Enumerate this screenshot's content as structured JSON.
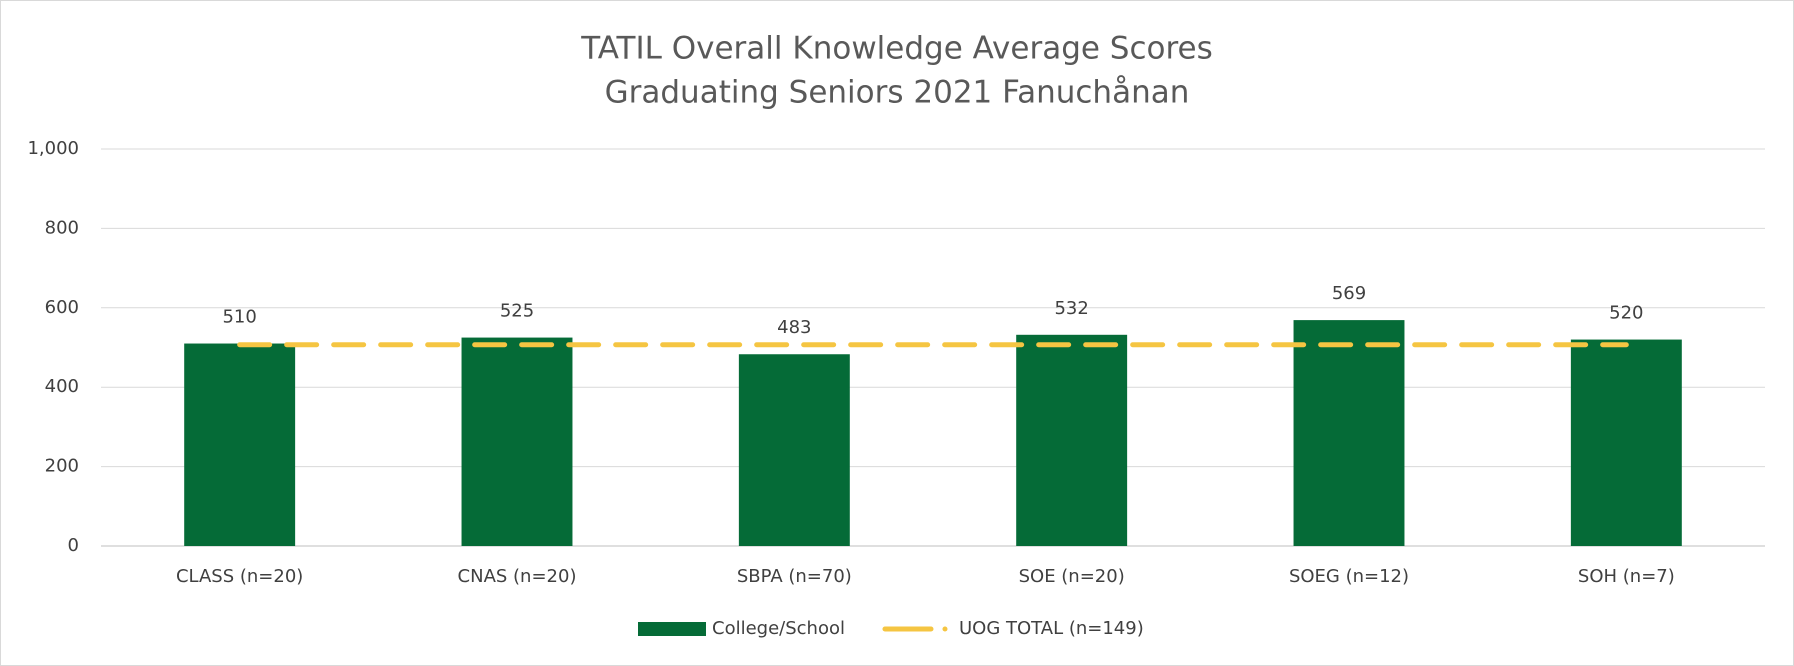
{
  "chart_data": {
    "type": "bar",
    "title": "TATIL Overall Knowledge Average Scores",
    "subtitle": "Graduating Seniors 2021 Fanuchånan",
    "categories": [
      "CLASS (n=20)",
      "CNAS (n=20)",
      "SBPA (n=70)",
      "SOE (n=20)",
      "SOEG (n=12)",
      "SOH (n=7)"
    ],
    "series": [
      {
        "name": "College/School",
        "type": "bar",
        "color": "#056b37",
        "values": [
          510,
          525,
          483,
          532,
          569,
          520
        ]
      },
      {
        "name": "UOG TOTAL (n=149)",
        "type": "line",
        "color": "#f5c542",
        "values": [
          507,
          507,
          507,
          507,
          507,
          507
        ]
      }
    ],
    "ylim": [
      0,
      1000
    ],
    "yticks": [
      0,
      200,
      400,
      600,
      800,
      {
        "value": 1000,
        "label": "1,000"
      }
    ],
    "grid": true,
    "legend": "bottom"
  }
}
